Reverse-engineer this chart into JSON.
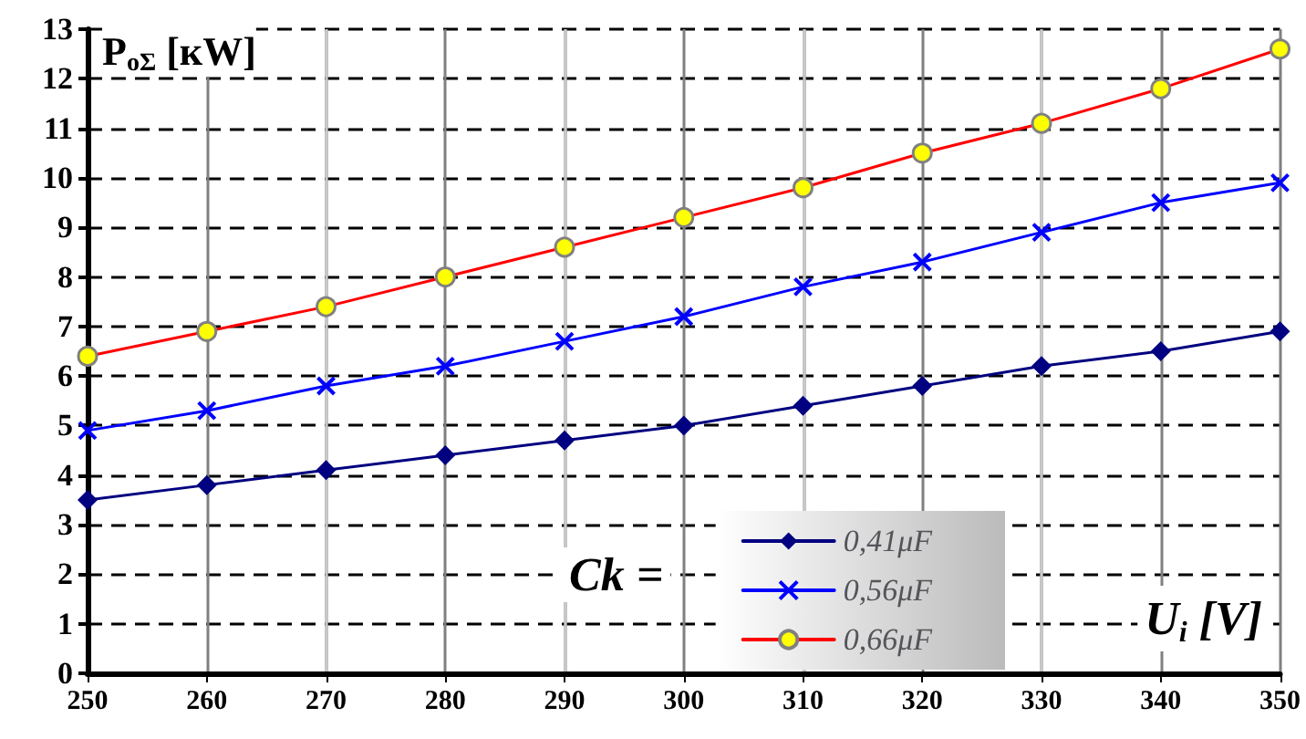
{
  "chart_data": {
    "type": "line",
    "xlabel": "U$_{i}$ [V]",
    "ylabel": "P$_{oΣ}$ [кW]",
    "annotations": [
      "Ck ="
    ],
    "x": [
      250,
      260,
      270,
      280,
      290,
      300,
      310,
      320,
      330,
      340,
      350
    ],
    "series": [
      {
        "name": "0,41μF",
        "color": "#000080",
        "marker": "diamond",
        "values": [
          3.5,
          3.8,
          4.1,
          4.4,
          4.7,
          5.0,
          5.4,
          5.8,
          6.2,
          6.5,
          6.9
        ]
      },
      {
        "name": "0,56μF",
        "color": "#0000ff",
        "marker": "cross",
        "values": [
          4.9,
          5.3,
          5.8,
          6.2,
          6.7,
          7.2,
          7.8,
          8.3,
          8.9,
          9.5,
          9.9
        ]
      },
      {
        "name": "0,66μF",
        "color": "#ff0000",
        "marker": "circle",
        "values": [
          6.4,
          6.9,
          7.4,
          8.0,
          8.6,
          9.2,
          9.8,
          10.5,
          11.1,
          11.8,
          12.6
        ]
      }
    ],
    "xlim": [
      250,
      350
    ],
    "xticks": [
      250,
      260,
      270,
      280,
      290,
      300,
      310,
      320,
      330,
      340,
      350
    ],
    "ylim": [
      0,
      13
    ],
    "yticks": [
      0,
      1,
      2,
      3,
      4,
      5,
      6,
      7,
      8,
      9,
      10,
      11,
      12,
      13
    ],
    "grid": true,
    "legend": "bottom right",
    "line_style": "solid"
  }
}
